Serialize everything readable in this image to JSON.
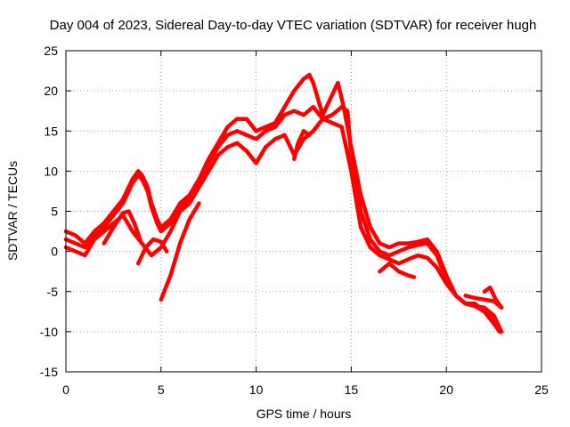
{
  "chart_data": {
    "type": "line",
    "title": "Day 004 of 2023, Sidereal Day-to-day VTEC variation (SDTVAR) for receiver hugh",
    "xlabel": "GPS time / hours",
    "ylabel": "SDTVAR / TECUs",
    "xlim": [
      0,
      25
    ],
    "ylim": [
      -15,
      25
    ],
    "xticks": [
      0,
      5,
      10,
      15,
      20,
      25
    ],
    "yticks": [
      -15,
      -10,
      -5,
      0,
      5,
      10,
      15,
      20,
      25
    ],
    "grid": true,
    "color": "#ff0000",
    "series": [
      {
        "name": "s1",
        "x": [
          0.0,
          0.5,
          1.0,
          1.5,
          2.0,
          2.5,
          3.0,
          3.5,
          3.8,
          4.0,
          4.3,
          4.5,
          4.8,
          5.0,
          5.5,
          6.0,
          6.5,
          7.0,
          7.5,
          8.0,
          8.5,
          9.0,
          9.5,
          10.0,
          10.5,
          11.0,
          11.5,
          12.0,
          12.5,
          12.8,
          13.0,
          13.5,
          14.0,
          14.3,
          14.6,
          15.0,
          15.5,
          16.0,
          16.5,
          17.0,
          17.5,
          18.0,
          18.5,
          19.0,
          19.5,
          20.0,
          20.5,
          21.0,
          21.5,
          22.0,
          22.5,
          22.9
        ],
        "y": [
          2.5,
          2.0,
          1.0,
          2.5,
          3.5,
          5.0,
          6.5,
          9.0,
          10.0,
          9.5,
          8.0,
          6.0,
          4.0,
          3.0,
          4.0,
          6.0,
          7.0,
          9.0,
          11.5,
          13.5,
          15.5,
          16.5,
          16.5,
          15.0,
          15.5,
          16.0,
          18.0,
          20.0,
          21.5,
          22.0,
          21.0,
          17.0,
          19.5,
          21.0,
          18.0,
          13.0,
          7.0,
          3.0,
          1.0,
          0.5,
          1.0,
          1.0,
          1.2,
          1.5,
          0.0,
          -3.0,
          -5.5,
          -6.5,
          -6.8,
          -7.0,
          -8.0,
          -10.0
        ]
      },
      {
        "name": "s2",
        "x": [
          0.0,
          0.5,
          1.0,
          1.5,
          2.0,
          2.5,
          3.0,
          3.5,
          3.8,
          4.0,
          4.3,
          4.5,
          4.8,
          5.0,
          5.5,
          6.0,
          6.5,
          7.0,
          7.5,
          8.0,
          8.5,
          9.0,
          9.5,
          10.0,
          10.5,
          11.0,
          11.5,
          12.0,
          12.5,
          13.0,
          13.5,
          14.0,
          14.5,
          14.8,
          15.0,
          15.5,
          16.0,
          16.5,
          17.0,
          17.5,
          18.0,
          18.5,
          19.0,
          19.5,
          20.0,
          20.5,
          21.0,
          21.5,
          22.0,
          22.5,
          22.9
        ],
        "y": [
          1.5,
          1.0,
          0.5,
          2.0,
          3.0,
          4.5,
          6.0,
          8.5,
          9.5,
          9.0,
          7.5,
          5.5,
          3.5,
          2.5,
          3.5,
          5.5,
          6.5,
          8.5,
          11.0,
          13.0,
          14.5,
          15.0,
          14.5,
          14.0,
          15.0,
          15.5,
          17.0,
          17.5,
          17.0,
          18.0,
          16.5,
          17.0,
          18.0,
          17.5,
          12.0,
          5.0,
          1.5,
          0.0,
          -0.5,
          0.0,
          0.5,
          0.8,
          1.0,
          -0.5,
          -3.5,
          -5.5,
          -6.5,
          -6.8,
          -7.5,
          -8.5,
          -10.0
        ]
      },
      {
        "name": "s3",
        "x": [
          0.0,
          0.5,
          1.0,
          1.5,
          2.0,
          2.5,
          3.0,
          3.5,
          4.0,
          4.5,
          5.0,
          5.5,
          6.0,
          6.5,
          7.0,
          7.5,
          8.0,
          8.5,
          9.0,
          9.5,
          10.0,
          10.5,
          11.0,
          11.5,
          12.0,
          12.5,
          13.0,
          13.5,
          14.0,
          14.5,
          15.0,
          15.5,
          16.0,
          16.5,
          17.0,
          17.5,
          18.0,
          18.5,
          19.0,
          19.5,
          20.0,
          20.5,
          21.0,
          21.5,
          22.0,
          22.5,
          22.8
        ],
        "y": [
          0.5,
          0.0,
          -0.5,
          1.5,
          2.5,
          3.5,
          4.5,
          2.5,
          1.0,
          -0.5,
          0.5,
          2.5,
          5.0,
          6.0,
          8.0,
          10.0,
          12.0,
          13.0,
          13.5,
          12.5,
          11.0,
          13.0,
          14.0,
          14.5,
          12.0,
          14.0,
          15.0,
          16.5,
          16.0,
          15.5,
          10.0,
          3.0,
          0.5,
          -0.5,
          -1.0,
          -1.5,
          -1.0,
          -0.5,
          -0.8,
          -2.0,
          -4.0,
          -5.5,
          -6.5,
          -6.5,
          -7.5,
          -9.0,
          -10.0
        ]
      },
      {
        "name": "s4",
        "x": [
          3.8,
          4.2,
          4.6,
          5.0,
          5.3
        ],
        "y": [
          -1.5,
          0.5,
          1.5,
          1.2,
          0.0
        ]
      },
      {
        "name": "s5",
        "x": [
          5.0,
          5.5,
          6.0,
          6.5,
          7.0
        ],
        "y": [
          -6.0,
          -3.0,
          1.0,
          4.0,
          6.0
        ]
      },
      {
        "name": "s6",
        "x": [
          2.0,
          2.5,
          3.0,
          3.3,
          3.6,
          3.9
        ],
        "y": [
          1.0,
          3.0,
          4.8,
          5.0,
          3.5,
          1.5
        ]
      },
      {
        "name": "s7",
        "x": [
          16.5,
          17.0,
          17.5,
          18.0,
          18.3
        ],
        "y": [
          -2.5,
          -1.5,
          -2.5,
          -3.0,
          -3.2
        ]
      },
      {
        "name": "s8",
        "x": [
          21.0,
          21.5,
          22.0,
          22.5,
          22.9
        ],
        "y": [
          -5.5,
          -5.8,
          -6.0,
          -6.2,
          -7.0
        ]
      },
      {
        "name": "s9",
        "x": [
          22.0,
          22.3,
          22.6,
          22.9
        ],
        "y": [
          -5.0,
          -4.5,
          -6.0,
          -7.0
        ]
      },
      {
        "name": "s10",
        "x": [
          12.0,
          12.2,
          12.5,
          12.8
        ],
        "y": [
          11.5,
          13.5,
          15.0,
          14.5
        ]
      }
    ]
  }
}
